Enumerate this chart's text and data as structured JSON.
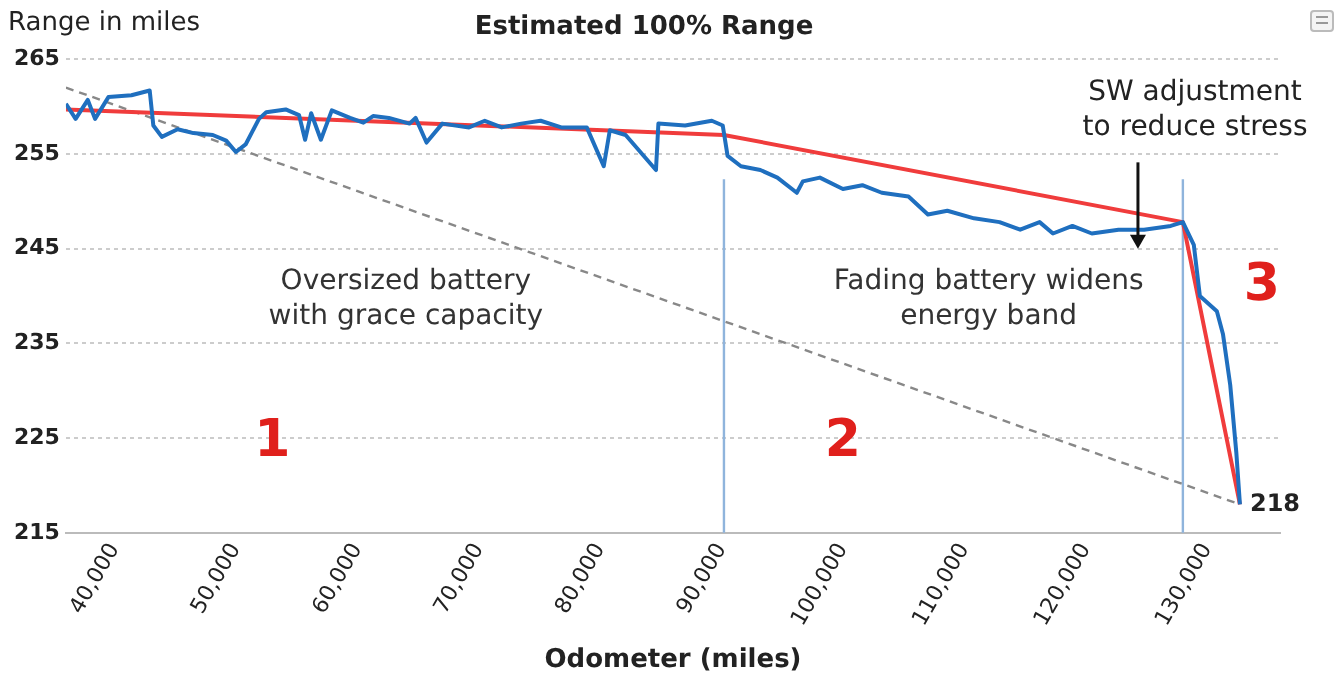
{
  "chart_data": {
    "type": "line",
    "title": "Estimated 100% Range",
    "xlabel": "Odometer (miles)",
    "ylabel": "Range in miles",
    "xlim": [
      36000,
      136000
    ],
    "xticks": [
      {
        "value": 40000,
        "label": "40,000"
      },
      {
        "value": 50000,
        "label": "50,000"
      },
      {
        "value": 60000,
        "label": "60,000"
      },
      {
        "value": 70000,
        "label": "70,000"
      },
      {
        "value": 80000,
        "label": "80,000"
      },
      {
        "value": 90000,
        "label": "90,000"
      },
      {
        "value": 100000,
        "label": "100,000"
      },
      {
        "value": 110000,
        "label": "110,000"
      },
      {
        "value": 120000,
        "label": "120,000"
      },
      {
        "value": 130000,
        "label": "130,000"
      }
    ],
    "ylim": [
      215,
      265
    ],
    "yticks": [
      215,
      225,
      235,
      245,
      255,
      265
    ],
    "grid": "y",
    "legend": false,
    "marker": "none",
    "series": [
      {
        "color": "#1f6fbf",
        "x": [
          36000,
          36800,
          37800,
          38400,
          39500,
          41400,
          42900,
          43200,
          43900,
          45200,
          46500,
          48100,
          49200,
          50000,
          50800,
          51900,
          52500,
          54100,
          55200,
          55700,
          56200,
          57000,
          57900,
          59400,
          60500,
          61300,
          62600,
          64300,
          64800,
          65700,
          67000,
          69200,
          70500,
          71900,
          73500,
          75100,
          76800,
          78900,
          80300,
          80800,
          82100,
          84600,
          84800,
          87000,
          89200,
          90100,
          90500,
          91600,
          93200,
          94600,
          96200,
          96700,
          98100,
          100000,
          101600,
          103200,
          105400,
          107000,
          108600,
          110800,
          112900,
          114600,
          116200,
          117300,
          118900,
          120500,
          122700,
          124800,
          127000,
          128000,
          128900,
          129400,
          130800,
          131300,
          131900,
          132400,
          132700
        ],
        "values": [
          260.3,
          258.7,
          260.7,
          258.7,
          261,
          261.2,
          261.7,
          258,
          256.8,
          257.6,
          257.2,
          257,
          256.4,
          255.2,
          256,
          258.7,
          259.4,
          259.7,
          259.1,
          256.5,
          259.3,
          256.5,
          259.6,
          258.8,
          258.3,
          259,
          258.8,
          258.2,
          258.8,
          256.2,
          258.2,
          257.8,
          258.5,
          257.8,
          258.2,
          258.5,
          257.8,
          257.8,
          253.7,
          257.5,
          257,
          253.3,
          258.2,
          258,
          258.5,
          258,
          254.8,
          253.7,
          253.3,
          252.5,
          250.9,
          252.1,
          252.5,
          251.3,
          251.7,
          250.9,
          250.5,
          248.6,
          249,
          248.2,
          247.8,
          247,
          247.8,
          246.6,
          247.4,
          246.6,
          247,
          247,
          247.4,
          247.8,
          245.4,
          240,
          238.4,
          236,
          230.6,
          223.5,
          218
        ]
      },
      {
        "color": "#f03c3c",
        "x": [
          36000,
          90200,
          128000,
          132700
        ],
        "values": [
          259.7,
          257,
          247.8,
          218
        ]
      },
      {
        "color": "#888888",
        "line_style": "dashed",
        "x": [
          36000,
          132700
        ],
        "values": [
          262,
          218
        ]
      }
    ],
    "ref_lines": [
      {
        "axis": "x",
        "value": 90200,
        "color": "#8fb4dc"
      },
      {
        "axis": "x",
        "value": 128000,
        "color": "#8fb4dc"
      }
    ],
    "annotations": [
      "Oversized battery\nwith grace capacity",
      "Fading battery widens\nenergy band",
      "SW adjustment\nto reduce stress",
      "1",
      "2",
      "3",
      {
        "text": "218",
        "x": 132700,
        "y": 218
      }
    ]
  }
}
